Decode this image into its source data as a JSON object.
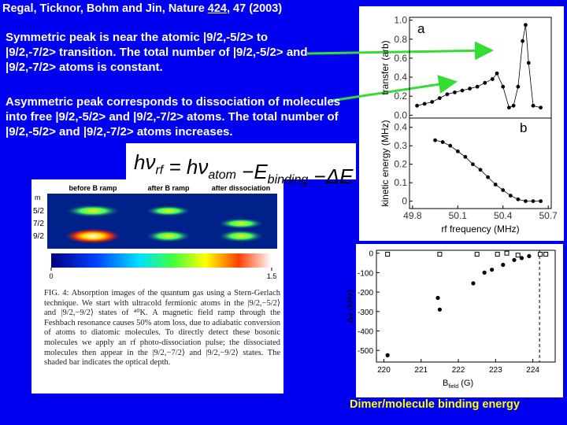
{
  "header": {
    "citation": [
      "Regal, Ticknor, Bohm and Jin, Nature ",
      "424",
      ", 47 (2003)"
    ]
  },
  "notes": [
    "Symmetric peak is near the atomic  |9/2,-5/2> to |9/2,-7/2> transition. The total number of |9/2,-5/2> and |9/2,-7/2> atoms is constant.",
    "Asymmetric peak corresponds to dissociation of molecules into free |9/2,-5/2> and |9/2,-7/2> atoms. The total number of |9/2,-5/2> and |9/2,-7/2> atoms increases."
  ],
  "equation": [
    {
      "text": "hν",
      "sub": "rf"
    },
    {
      "text": " = hν",
      "sub": "atom"
    },
    {
      "text": " −E",
      "sub": "binding"
    },
    {
      "text": " −ΔE"
    }
  ],
  "spectrum": {
    "xlabel": "rf frequency (MHz)",
    "xlim": [
      49.78,
      50.72
    ],
    "xticks": [
      49.8,
      50.1,
      50.4,
      50.7
    ],
    "panel_a": {
      "letter": "a",
      "ylabel": "transfer (arb)",
      "ylim": [
        -0.03,
        1.03
      ],
      "yticks": [
        {
          "value": 0,
          "label": "0.0"
        },
        {
          "value": 0.2,
          "label": "0.2"
        },
        {
          "value": 0.4,
          "label": "0.4"
        },
        {
          "value": 0.6,
          "label": "0.6"
        },
        {
          "value": 0.8,
          "label": "0.8"
        },
        {
          "value": 1,
          "label": "1.0"
        }
      ],
      "x": [
        49.83,
        49.88,
        49.93,
        49.98,
        50.03,
        50.08,
        50.13,
        50.18,
        50.23,
        50.28,
        50.33,
        50.36,
        50.4,
        50.44,
        50.47,
        50.5,
        50.53,
        50.55,
        50.57,
        50.6,
        50.65
      ],
      "values": [
        0.1,
        0.12,
        0.14,
        0.18,
        0.22,
        0.24,
        0.26,
        0.28,
        0.3,
        0.34,
        0.38,
        0.44,
        0.3,
        0.08,
        0.1,
        0.3,
        0.78,
        0.95,
        0.55,
        0.1,
        0.08
      ]
    },
    "panel_b": {
      "letter": "b",
      "ylabel": "kinetic energy (MHz)",
      "ylim": [
        -0.04,
        0.45
      ],
      "yticks": [
        0,
        0.1,
        0.2,
        0.3,
        0.4
      ],
      "x": [
        49.95,
        50,
        50.05,
        50.1,
        50.15,
        50.2,
        50.25,
        50.3,
        50.35,
        50.4,
        50.45,
        50.5,
        50.55,
        50.6,
        50.65
      ],
      "values": [
        0.33,
        0.32,
        0.3,
        0.27,
        0.24,
        0.2,
        0.17,
        0.13,
        0.09,
        0.06,
        0.03,
        0.01,
        0,
        0,
        0
      ]
    }
  },
  "absorption": {
    "columns": [
      "before B ramp",
      "after B ramp",
      "after dissociation"
    ],
    "row_title": "m",
    "rows": [
      "5/2",
      "7/2",
      "9/2"
    ],
    "colorbar_ticks": [
      0,
      1.5
    ],
    "caption": "FIG. 4: Absorption images of the quantum gas using a Stern-Gerlach technique. We start with ultracold fermionic atoms in the |9/2,−5/2⟩ and |9/2,−9/2⟩ states of ⁴⁰K. A magnetic field ramp through the Feshbach resonance causes 50% atom loss, due to adiabatic conversion of atoms to diatomic molecules. To directly detect these bosonic molecules we apply an rf photo-dissociation pulse; the dissociated molecules then appear in the |9/2,−7/2⟩ and |9/2,−9/2⟩ states. The shaded bar indicates the optical depth."
  },
  "binding": {
    "ylabel": "Δν (kHz)",
    "xlabel": [
      "B",
      "field",
      " (G)"
    ],
    "xlim": [
      219.8,
      224.6
    ],
    "xticks": [
      220,
      221,
      222,
      223,
      224
    ],
    "ylim": [
      -560,
      15
    ],
    "yticks": [
      0,
      -100,
      -200,
      -300,
      -400,
      -500
    ],
    "resonance": 224.18,
    "filled": {
      "x": [
        220.1,
        221.45,
        221.5,
        222.4,
        222.7,
        222.9,
        223.2,
        223.5,
        223.7,
        223.9
      ],
      "values": [
        -525,
        -230,
        -290,
        -155,
        -100,
        -85,
        -60,
        -35,
        -25,
        -15
      ]
    },
    "open": {
      "x": [
        220.1,
        221.5,
        222.5,
        223.05,
        223.3,
        223.6,
        224.2,
        224.35
      ],
      "values": [
        -5,
        -5,
        -5,
        -5,
        0,
        -10,
        -5,
        -5
      ]
    },
    "caption": "Dimer/molecule binding energy"
  }
}
